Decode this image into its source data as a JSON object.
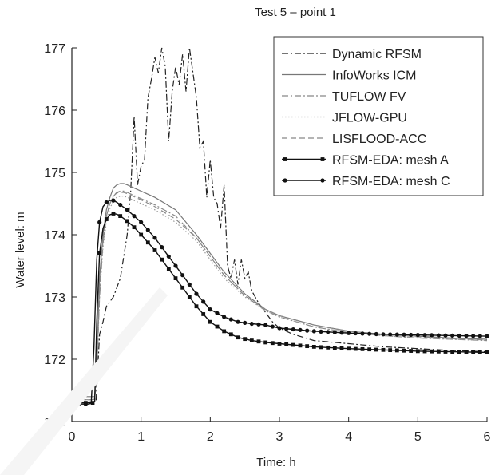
{
  "chart_data": {
    "type": "line",
    "title": "Test 5 – point 1",
    "xlabel": "Time: h",
    "ylabel": "Water level: m",
    "xlim": [
      0,
      6
    ],
    "ylim": [
      171,
      177
    ],
    "xticks": [
      "0",
      "1",
      "2",
      "3",
      "4",
      "5",
      "6"
    ],
    "yticks": [
      "171",
      "172",
      "173",
      "174",
      "175",
      "176",
      "177"
    ],
    "grid": false,
    "legend_position": "top-right",
    "series": [
      {
        "name": "Dynamic RFSM",
        "style": "dash-dot",
        "color": "#222222",
        "x": [
          0,
          0.35,
          0.4,
          0.45,
          0.5,
          0.6,
          0.7,
          0.8,
          0.85,
          0.9,
          0.95,
          1.0,
          1.05,
          1.1,
          1.15,
          1.2,
          1.25,
          1.3,
          1.35,
          1.4,
          1.45,
          1.5,
          1.55,
          1.6,
          1.65,
          1.7,
          1.75,
          1.8,
          1.85,
          1.9,
          1.95,
          2.0,
          2.05,
          2.1,
          2.15,
          2.2,
          2.25,
          2.3,
          2.35,
          2.4,
          2.45,
          2.5,
          2.55,
          2.6,
          2.65,
          2.7,
          2.8,
          2.9,
          3.0,
          3.2,
          3.5,
          4.0,
          4.5,
          5.0,
          5.5,
          6.0
        ],
        "y": [
          171.3,
          171.32,
          172.4,
          172.6,
          172.85,
          173.0,
          173.3,
          174.0,
          174.7,
          175.9,
          174.8,
          175.1,
          175.2,
          176.2,
          176.5,
          176.85,
          176.6,
          177.0,
          176.7,
          175.5,
          176.3,
          176.7,
          176.4,
          176.9,
          176.3,
          177.0,
          176.6,
          176.2,
          175.4,
          175.5,
          174.6,
          175.2,
          174.6,
          174.5,
          174.1,
          174.8,
          173.5,
          173.3,
          173.6,
          173.2,
          173.6,
          173.3,
          173.4,
          173.1,
          173.0,
          172.9,
          172.75,
          172.6,
          172.5,
          172.4,
          172.3,
          172.25,
          172.2,
          172.17,
          172.14,
          172.12
        ]
      },
      {
        "name": "InfoWorks ICM",
        "style": "solid",
        "color": "#777777",
        "x": [
          0,
          0.3,
          0.33,
          0.36,
          0.4,
          0.45,
          0.5,
          0.55,
          0.6,
          0.65,
          0.7,
          0.75,
          0.8,
          1.0,
          1.2,
          1.5,
          1.8,
          2.0,
          2.2,
          2.5,
          2.8,
          3.0,
          3.5,
          4.0,
          4.5,
          5.0,
          5.5,
          6.0
        ],
        "y": [
          171.4,
          171.4,
          171.4,
          172.0,
          173.3,
          174.0,
          174.4,
          174.6,
          174.75,
          174.8,
          174.82,
          174.82,
          174.8,
          174.7,
          174.6,
          174.4,
          174.0,
          173.7,
          173.4,
          173.05,
          172.8,
          172.7,
          172.55,
          172.45,
          172.4,
          172.37,
          172.34,
          172.32
        ]
      },
      {
        "name": "TUFLOW FV",
        "style": "dash-dot",
        "color": "#888888",
        "x": [
          0,
          0.3,
          0.33,
          0.36,
          0.4,
          0.45,
          0.5,
          0.55,
          0.6,
          0.65,
          0.7,
          0.75,
          0.8,
          1.0,
          1.2,
          1.5,
          1.8,
          2.0,
          2.2,
          2.5,
          2.8,
          3.0,
          3.5,
          4.0,
          4.5,
          5.0,
          5.5,
          6.0
        ],
        "y": [
          171.35,
          171.35,
          171.36,
          171.8,
          173.0,
          173.85,
          174.3,
          174.5,
          174.62,
          174.68,
          174.7,
          174.7,
          174.68,
          174.58,
          174.48,
          174.3,
          173.95,
          173.65,
          173.35,
          173.02,
          172.78,
          172.68,
          172.52,
          172.43,
          172.38,
          172.34,
          172.32,
          172.3
        ]
      },
      {
        "name": "JFLOW-GPU",
        "style": "dotted",
        "color": "#999999",
        "x": [
          0,
          0.3,
          0.33,
          0.36,
          0.4,
          0.45,
          0.5,
          0.55,
          0.6,
          0.65,
          0.7,
          0.75,
          0.8,
          1.0,
          1.2,
          1.5,
          1.8,
          2.0,
          2.2,
          2.5,
          2.8,
          3.0,
          3.5,
          4.0,
          4.5,
          5.0,
          5.5,
          6.0
        ],
        "y": [
          171.35,
          171.35,
          171.36,
          171.8,
          173.0,
          173.8,
          174.2,
          174.42,
          174.55,
          174.6,
          174.62,
          174.62,
          174.6,
          174.5,
          174.4,
          174.2,
          173.9,
          173.6,
          173.3,
          173.0,
          172.78,
          172.68,
          172.52,
          172.43,
          172.38,
          172.34,
          172.32,
          172.3
        ]
      },
      {
        "name": "LISFLOOD-ACC",
        "style": "dashed",
        "color": "#888888",
        "x": [
          0,
          0.3,
          0.33,
          0.36,
          0.4,
          0.45,
          0.5,
          0.55,
          0.6,
          0.65,
          0.7,
          0.75,
          0.8,
          1.0,
          1.2,
          1.5,
          1.8,
          2.0,
          2.2,
          2.5,
          2.8,
          3.0,
          3.5,
          4.0,
          4.5,
          5.0,
          5.5,
          6.0
        ],
        "y": [
          171.35,
          171.35,
          171.36,
          171.8,
          173.1,
          173.9,
          174.3,
          174.5,
          174.62,
          174.67,
          174.68,
          174.68,
          174.66,
          174.56,
          174.45,
          174.25,
          173.95,
          173.65,
          173.35,
          173.02,
          172.8,
          172.7,
          172.55,
          172.45,
          172.4,
          172.36,
          172.33,
          172.31
        ]
      },
      {
        "name": "RFSM-EDA: mesh A",
        "style": "solid-square",
        "color": "#111111",
        "x": [
          0,
          0.3,
          0.33,
          0.36,
          0.4,
          0.45,
          0.5,
          0.55,
          0.6,
          0.65,
          0.7,
          0.8,
          0.9,
          1.0,
          1.2,
          1.4,
          1.6,
          1.8,
          2.0,
          2.2,
          2.4,
          2.6,
          2.8,
          3.0,
          3.5,
          4.0,
          4.5,
          5.0,
          5.5,
          6.0
        ],
        "y": [
          171.3,
          171.3,
          171.32,
          172.6,
          173.7,
          174.1,
          174.25,
          174.32,
          174.34,
          174.33,
          174.3,
          174.22,
          174.12,
          174.0,
          173.75,
          173.45,
          173.15,
          172.85,
          172.6,
          172.45,
          172.35,
          172.3,
          172.27,
          172.25,
          172.2,
          172.17,
          172.15,
          172.13,
          172.12,
          172.11
        ]
      },
      {
        "name": "RFSM-EDA: mesh C",
        "style": "solid-circle",
        "color": "#111111",
        "x": [
          0,
          0.25,
          0.28,
          0.32,
          0.36,
          0.4,
          0.45,
          0.5,
          0.55,
          0.6,
          0.65,
          0.7,
          0.8,
          0.9,
          1.0,
          1.2,
          1.4,
          1.6,
          1.8,
          2.0,
          2.2,
          2.4,
          2.6,
          2.8,
          3.0,
          3.5,
          4.0,
          4.5,
          5.0,
          5.5,
          6.0
        ],
        "y": [
          171.28,
          171.28,
          171.3,
          172.2,
          173.6,
          174.2,
          174.45,
          174.52,
          174.55,
          174.55,
          174.52,
          174.48,
          174.4,
          174.3,
          174.2,
          173.95,
          173.65,
          173.35,
          173.05,
          172.8,
          172.68,
          172.6,
          172.57,
          172.55,
          172.5,
          172.45,
          172.42,
          172.4,
          172.39,
          172.38,
          172.37
        ]
      }
    ]
  }
}
